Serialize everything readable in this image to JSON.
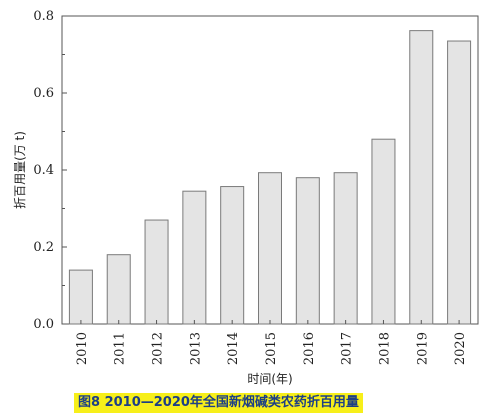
{
  "caption": "图8  2010—2020年全国新烟碱类农药折百用量",
  "chart_data": {
    "type": "bar",
    "categories": [
      "2010",
      "2011",
      "2012",
      "2013",
      "2014",
      "2015",
      "2016",
      "2017",
      "2018",
      "2019",
      "2020"
    ],
    "values": [
      0.14,
      0.18,
      0.27,
      0.345,
      0.357,
      0.393,
      0.38,
      0.393,
      0.48,
      0.762,
      0.735
    ],
    "xlabel": "时间(年)",
    "ylabel": "折百用量(万 t)",
    "ylim": [
      0,
      0.8
    ],
    "yticks": [
      0.0,
      0.2,
      0.4,
      0.6,
      0.8
    ],
    "ytick_labels": [
      "0.0",
      "0.2",
      "0.4",
      "0.6",
      "0.8"
    ],
    "grid": false,
    "bar_color": "#e4e4e4",
    "bar_edge_color": "#7a7a7a",
    "axis_color": "#555555"
  }
}
